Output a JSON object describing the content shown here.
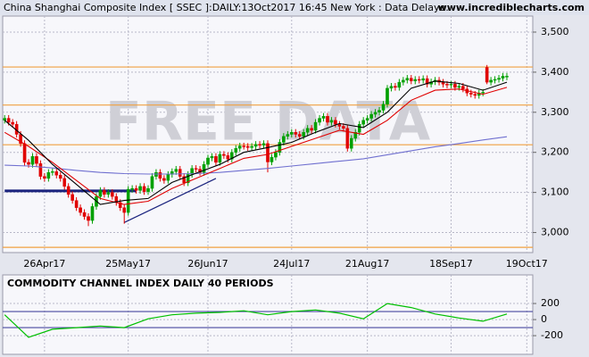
{
  "chart_data": [
    {
      "type": "candlestick",
      "title": "China Shanghai Composite Index [ SSEC ]:DAILY:13Oct2017 16:45 New York : Data Delaye..",
      "source": "www.incrediblecharts.com",
      "watermark": "FREE DATA",
      "categories": [
        null,
        null,
        null,
        null,
        null,
        null,
        null,
        null,
        null,
        null,
        "26Apr17",
        null,
        null,
        null,
        null,
        null,
        null,
        null,
        null,
        null,
        null,
        null,
        null,
        null,
        null,
        null,
        null,
        null,
        null,
        null,
        null,
        "25May17",
        null,
        null,
        null,
        null,
        null,
        null,
        null,
        null,
        null,
        null,
        null,
        null,
        null,
        null,
        null,
        null,
        null,
        null,
        null,
        "26Jun17",
        null,
        null,
        null,
        null,
        null,
        null,
        null,
        null,
        null,
        null,
        null,
        null,
        null,
        null,
        null,
        null,
        null,
        null,
        null,
        null,
        "24Jul17",
        null,
        null,
        null,
        null,
        null,
        null,
        null,
        null,
        null,
        null,
        null,
        null,
        null,
        null,
        null,
        null,
        null,
        null,
        "21Aug17",
        null,
        null,
        null,
        null,
        null,
        null,
        null,
        null,
        null,
        null,
        null,
        null,
        null,
        null,
        null,
        null,
        null,
        null,
        null,
        null,
        "18Sep17",
        null,
        null,
        null,
        null,
        null,
        null,
        null,
        null,
        null,
        null,
        null,
        null,
        null,
        null,
        null,
        null,
        null,
        null,
        "19Oct17",
        null
      ],
      "open": [
        3280,
        3285,
        3275,
        3270,
        3245,
        3222,
        3175,
        3170,
        3190,
        3172,
        3140,
        3135,
        3150,
        3152,
        3143,
        3135,
        3115,
        3095,
        3080,
        3062,
        3050,
        3040,
        3030,
        3065,
        3090,
        3105,
        3095,
        3100,
        3090,
        3075,
        3062,
        3050,
        3108,
        3110,
        3105,
        3115,
        3102,
        3110,
        3140,
        3150,
        3135,
        3130,
        3145,
        3152,
        3158,
        3140,
        3124,
        3145,
        3160,
        3158,
        3150,
        3170,
        3186,
        3190,
        3175,
        3195,
        3192,
        3183,
        3200,
        3210,
        3216,
        3215,
        3212,
        3215,
        3220,
        3218,
        3222,
        3176,
        3188,
        3200,
        3225,
        3240,
        3245,
        3250,
        3245,
        3240,
        3250,
        3260,
        3255,
        3275,
        3285,
        3290,
        3275,
        3280,
        3270,
        3265,
        3260,
        3210,
        3235,
        3250,
        3270,
        3280,
        3285,
        3295,
        3300,
        3305,
        3320,
        3360,
        3365,
        3362,
        3375,
        3380,
        3385,
        3378,
        3382,
        3380,
        3384,
        3370,
        3376,
        3380,
        3375,
        3370,
        3368,
        3370,
        3362,
        3365,
        3358,
        3348,
        3345,
        3342,
        3348,
        3412,
        3375,
        3380,
        3382,
        3385,
        3388,
        null,
        null,
        null,
        null,
        null,
        null
      ],
      "high": [
        3293,
        3293,
        3283,
        3278,
        3253,
        3230,
        3183,
        3198,
        3198,
        3180,
        3148,
        3158,
        3160,
        3160,
        3151,
        3143,
        3123,
        3103,
        3088,
        3070,
        3058,
        3048,
        3073,
        3098,
        3113,
        3113,
        3108,
        3108,
        3098,
        3083,
        3070,
        3116,
        3118,
        3118,
        3123,
        3123,
        3118,
        3148,
        3158,
        3158,
        3143,
        3153,
        3160,
        3166,
        3166,
        3148,
        3153,
        3168,
        3168,
        3166,
        3178,
        3194,
        3198,
        3198,
        3203,
        3203,
        3200,
        3208,
        3218,
        3224,
        3224,
        3223,
        3223,
        3228,
        3228,
        3230,
        3230,
        3196,
        3208,
        3233,
        3248,
        3253,
        3258,
        3258,
        3253,
        3258,
        3268,
        3268,
        3283,
        3293,
        3298,
        3298,
        3288,
        3288,
        3278,
        3273,
        3268,
        3243,
        3258,
        3278,
        3288,
        3293,
        3303,
        3308,
        3313,
        3328,
        3368,
        3373,
        3373,
        3383,
        3388,
        3393,
        3393,
        3390,
        3390,
        3392,
        3392,
        3384,
        3388,
        3388,
        3383,
        3378,
        3378,
        3378,
        3373,
        3373,
        3366,
        3356,
        3353,
        3356,
        3358,
        3418,
        3388,
        3390,
        3393,
        3398,
        3398,
        null,
        null,
        null,
        null,
        null,
        null
      ],
      "low": [
        3272,
        3267,
        3262,
        3237,
        3214,
        3167,
        3162,
        3162,
        3164,
        3132,
        3127,
        3127,
        3142,
        3135,
        3127,
        3107,
        3087,
        3072,
        3054,
        3042,
        3032,
        3016,
        3022,
        3057,
        3082,
        3087,
        3087,
        3082,
        3067,
        3054,
        3022,
        3042,
        3100,
        3097,
        3097,
        3094,
        3094,
        3102,
        3132,
        3127,
        3122,
        3122,
        3137,
        3144,
        3132,
        3116,
        3116,
        3137,
        3150,
        3142,
        3142,
        3162,
        3178,
        3167,
        3167,
        3184,
        3175,
        3175,
        3192,
        3202,
        3207,
        3204,
        3204,
        3207,
        3210,
        3210,
        3150,
        3168,
        3180,
        3192,
        3217,
        3232,
        3237,
        3237,
        3232,
        3232,
        3242,
        3247,
        3247,
        3267,
        3277,
        3267,
        3267,
        3262,
        3257,
        3252,
        3202,
        3202,
        3227,
        3242,
        3262,
        3272,
        3277,
        3287,
        3292,
        3297,
        3312,
        3352,
        3354,
        3354,
        3367,
        3372,
        3370,
        3370,
        3372,
        3372,
        3362,
        3362,
        3368,
        3367,
        3362,
        3360,
        3360,
        3354,
        3354,
        3350,
        3340,
        3337,
        3334,
        3334,
        3340,
        3370,
        3367,
        3372,
        3374,
        3377,
        3380,
        null,
        null,
        null,
        null,
        null,
        null
      ],
      "close": [
        3285,
        3275,
        3270,
        3245,
        3222,
        3175,
        3170,
        3190,
        3172,
        3140,
        3135,
        3150,
        3152,
        3143,
        3135,
        3115,
        3095,
        3080,
        3062,
        3050,
        3040,
        3030,
        3065,
        3090,
        3105,
        3095,
        3100,
        3090,
        3075,
        3062,
        3050,
        3108,
        3110,
        3105,
        3115,
        3102,
        3110,
        3140,
        3150,
        3135,
        3130,
        3145,
        3152,
        3158,
        3140,
        3124,
        3145,
        3160,
        3158,
        3150,
        3170,
        3186,
        3190,
        3175,
        3195,
        3192,
        3183,
        3200,
        3210,
        3216,
        3215,
        3212,
        3215,
        3220,
        3218,
        3222,
        3176,
        3188,
        3200,
        3225,
        3240,
        3245,
        3250,
        3245,
        3240,
        3250,
        3260,
        3255,
        3275,
        3285,
        3290,
        3275,
        3280,
        3270,
        3265,
        3260,
        3210,
        3235,
        3250,
        3270,
        3280,
        3285,
        3295,
        3300,
        3305,
        3320,
        3360,
        3365,
        3362,
        3375,
        3380,
        3385,
        3378,
        3382,
        3380,
        3384,
        3370,
        3376,
        3380,
        3375,
        3370,
        3368,
        3370,
        3362,
        3365,
        3358,
        3348,
        3345,
        3342,
        3348,
        3350,
        3375,
        3380,
        3382,
        3385,
        3390,
        3390,
        null,
        null,
        null,
        null,
        null,
        null
      ],
      "up_color": "#00a000",
      "down_color": "#e00000",
      "lines": [
        {
          "color": "#7070d0",
          "x": [
            0,
            6,
            12,
            18,
            24,
            30,
            36,
            42,
            48,
            54,
            60,
            66,
            72,
            78,
            84,
            90,
            96,
            102,
            108,
            114,
            120,
            126
          ],
          "values": [
            3168,
            3166,
            3161,
            3155,
            3150,
            3147,
            3146,
            3146,
            3147,
            3150,
            3155,
            3160,
            3166,
            3172,
            3178,
            3184,
            3194,
            3204,
            3214,
            3222,
            3231,
            3239
          ]
        },
        {
          "color": "#e00000",
          "x": [
            0,
            6,
            12,
            18,
            24,
            30,
            36,
            42,
            48,
            54,
            60,
            66,
            72,
            78,
            84,
            90,
            96,
            102,
            108,
            114,
            120,
            126
          ],
          "values": [
            3250,
            3215,
            3175,
            3130,
            3085,
            3070,
            3078,
            3110,
            3135,
            3160,
            3185,
            3195,
            3215,
            3235,
            3255,
            3245,
            3280,
            3330,
            3355,
            3358,
            3345,
            3362
          ]
        },
        {
          "color": "#000000",
          "x": [
            0,
            6,
            12,
            18,
            24,
            30,
            36,
            42,
            48,
            54,
            60,
            66,
            72,
            78,
            84,
            90,
            96,
            102,
            108,
            114,
            120,
            126
          ],
          "values": [
            3280,
            3230,
            3170,
            3120,
            3070,
            3080,
            3085,
            3125,
            3148,
            3170,
            3200,
            3212,
            3225,
            3250,
            3272,
            3262,
            3300,
            3360,
            3378,
            3372,
            3355,
            3375
          ]
        }
      ],
      "levels": [
        3413,
        3318,
        3219,
        2963
      ],
      "level_color": "#f0a040",
      "support": {
        "value": 3104,
        "x": [
          0,
          33
        ],
        "color": "#1a237e"
      },
      "trendline": {
        "x": [
          30,
          53
        ],
        "values": [
          3025,
          3135
        ],
        "color": "#1a237e"
      },
      "ylim": [
        2950,
        3540
      ],
      "yticks": [
        {
          "value": 3500,
          "label": "3,500"
        },
        {
          "value": 3400,
          "label": "3,400"
        },
        {
          "value": 3300,
          "label": "3,300"
        },
        {
          "value": 3200,
          "label": "3,200"
        },
        {
          "value": 3100,
          "label": "3,100"
        },
        {
          "value": 3000,
          "label": "3,000"
        }
      ],
      "grid": true
    },
    {
      "type": "line",
      "title": "COMMODITY CHANNEL INDEX DAILY 40 PERIODS",
      "series": [
        {
          "color": "#00c000",
          "x": [
            0,
            6,
            12,
            18,
            24,
            30,
            36,
            42,
            48,
            54,
            60,
            66,
            72,
            78,
            84,
            90,
            96,
            102,
            108,
            114,
            120,
            126
          ],
          "values": [
            60,
            -220,
            -120,
            -100,
            -80,
            -100,
            10,
            60,
            80,
            90,
            110,
            60,
            100,
            120,
            80,
            10,
            200,
            150,
            70,
            20,
            -20,
            70
          ]
        }
      ],
      "levels": [
        100,
        -100
      ],
      "level_color": "#4a4aa0",
      "ylim": [
        -410,
        345
      ],
      "yticks": [
        200,
        0,
        -200
      ],
      "grid": true
    }
  ]
}
